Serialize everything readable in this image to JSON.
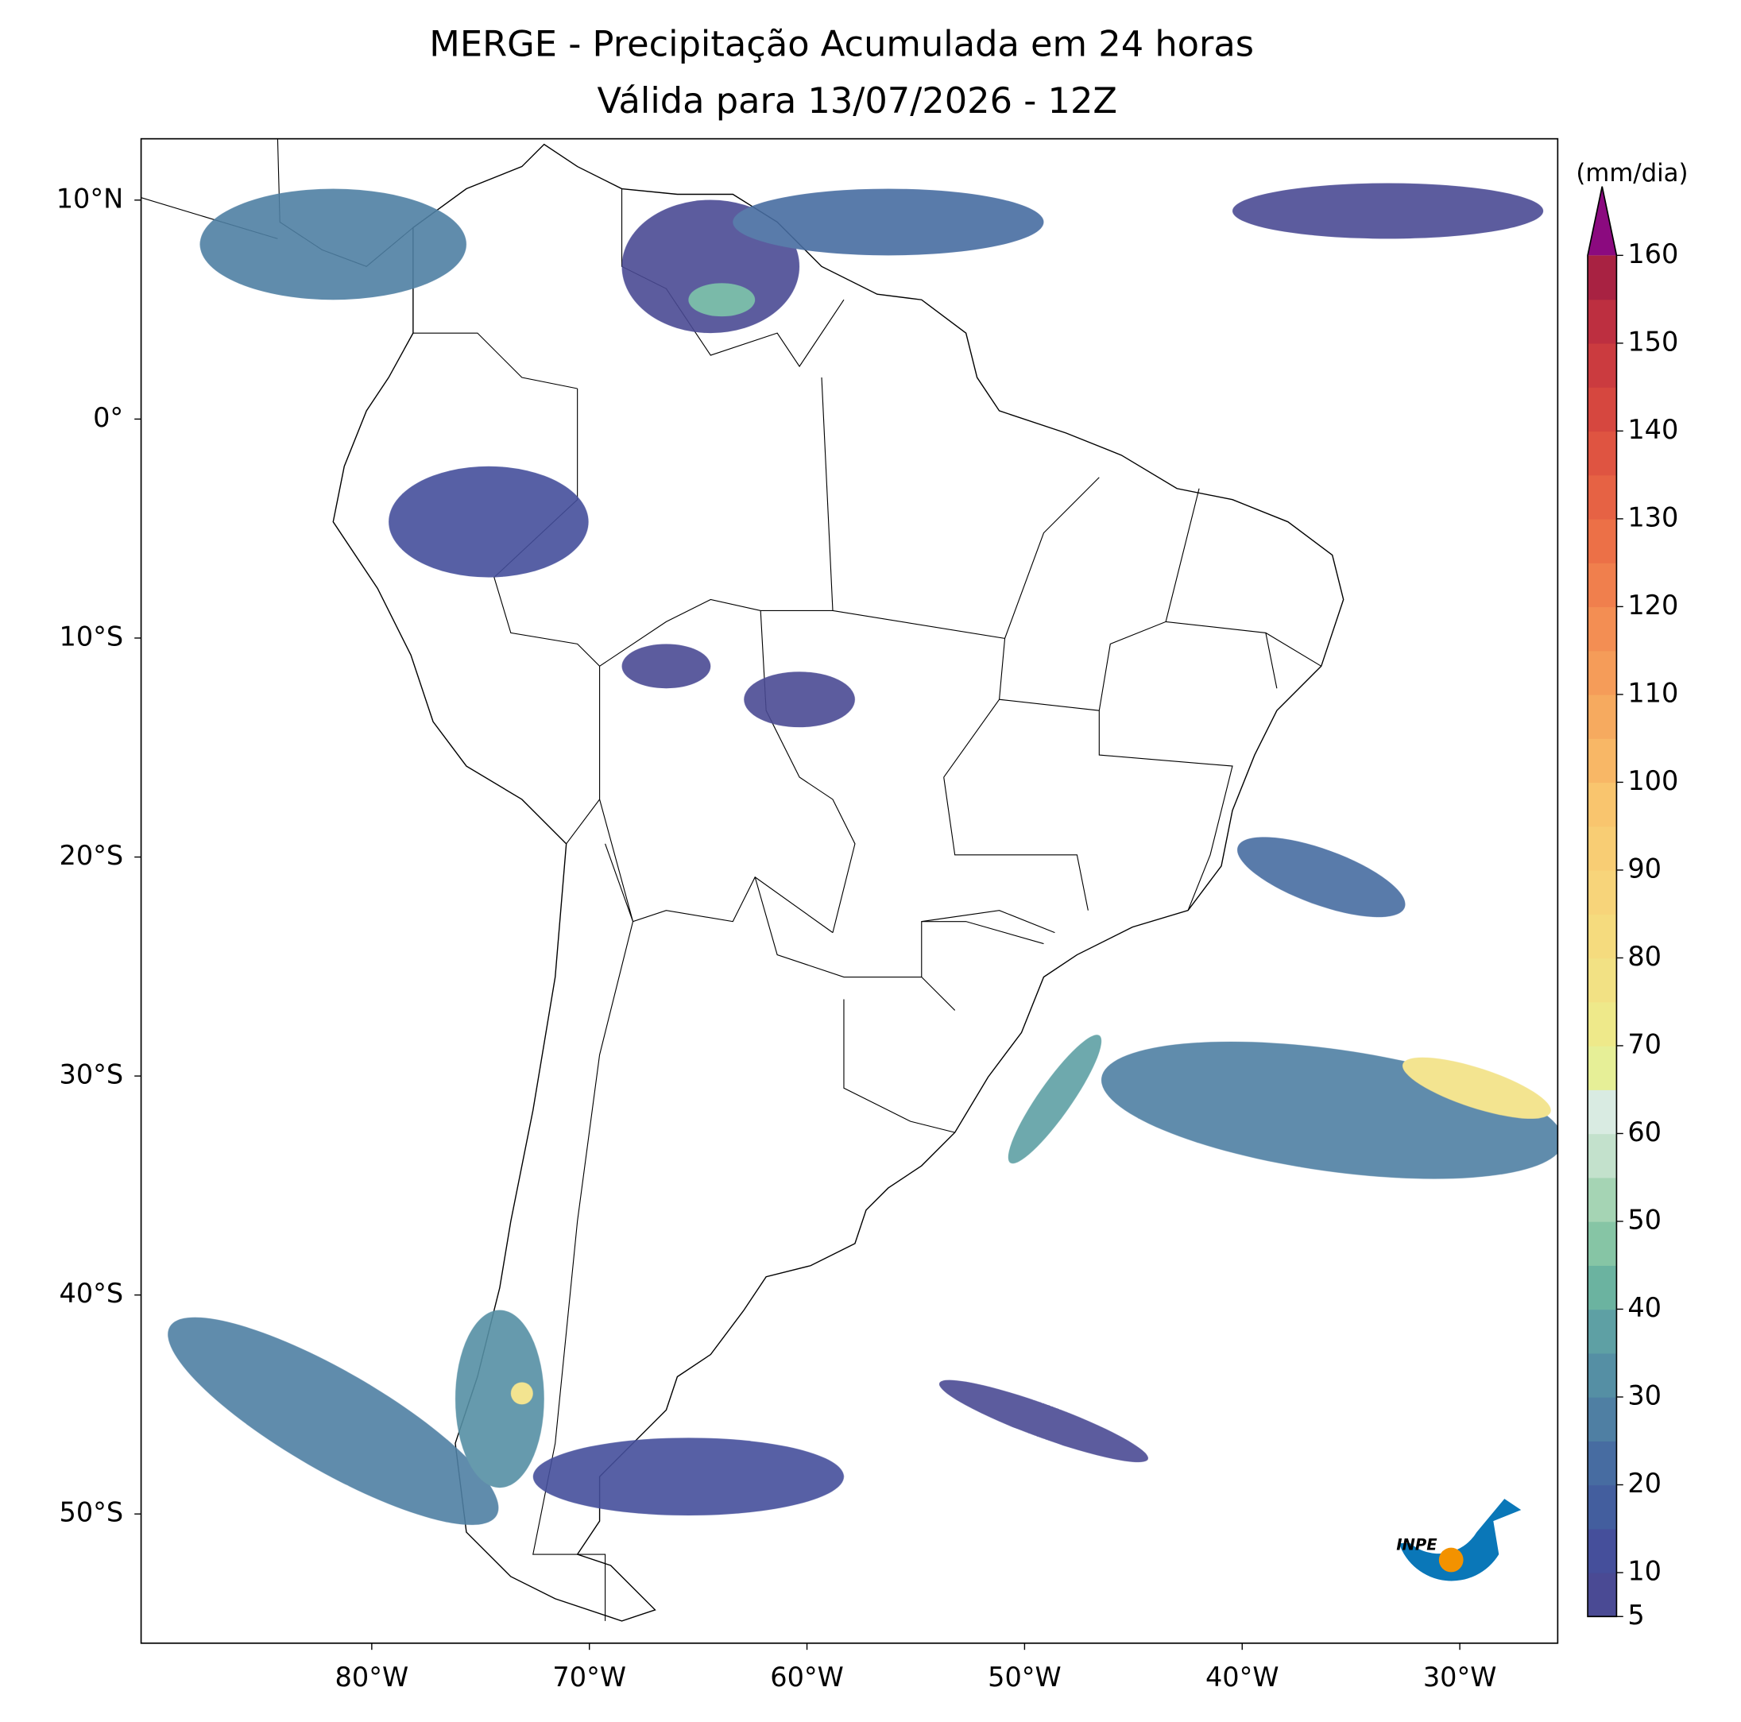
{
  "map": {
    "title": "MERGE - Precipitação Acumulada em 24 horas",
    "subtitle": "Válida para 13/07/2026 - 12Z",
    "lon_range": [
      -90.6,
      -25.5
    ],
    "lat_range": [
      -55.9,
      12.8
    ],
    "lon_ticks": [
      {
        "value": -80,
        "label": "80°W"
      },
      {
        "value": -70,
        "label": "70°W"
      },
      {
        "value": -60,
        "label": "60°W"
      },
      {
        "value": -50,
        "label": "50°W"
      },
      {
        "value": -40,
        "label": "40°W"
      },
      {
        "value": -30,
        "label": "30°W"
      }
    ],
    "lat_ticks": [
      {
        "value": 10,
        "label": "10°N"
      },
      {
        "value": 0,
        "label": "0°"
      },
      {
        "value": -10,
        "label": "10°S"
      },
      {
        "value": -20,
        "label": "20°S"
      },
      {
        "value": -30,
        "label": "30°S"
      },
      {
        "value": -40,
        "label": "40°S"
      },
      {
        "value": -50,
        "label": "50°S"
      }
    ],
    "colorbar": {
      "label": "(mm/dia)",
      "lim": [
        5,
        160
      ],
      "ticks": [
        5,
        10,
        20,
        30,
        40,
        50,
        60,
        70,
        80,
        90,
        100,
        110,
        120,
        130,
        140,
        150,
        160
      ],
      "colors": [
        "#4a4a94",
        "#454f9b",
        "#435e9e",
        "#476ca1",
        "#4f7fa3",
        "#558fa4",
        "#5ea0a4",
        "#6bb3a0",
        "#86c5a5",
        "#a5d4b4",
        "#c3e1cc",
        "#d9ebe2",
        "#e6ef97",
        "#eee98a",
        "#f2e184",
        "#f5db7e",
        "#f7d47a",
        "#f8cd74",
        "#f9c56e",
        "#f8b766",
        "#f6aa5f",
        "#f59c59",
        "#f38e53",
        "#f07f4d",
        "#ec7047",
        "#e66244",
        "#df5441",
        "#d6473f",
        "#cb3b3f",
        "#bd2f40",
        "#a82242"
      ],
      "extend_color": "#8b0a7f"
    },
    "logo": {
      "text": "INPE"
    }
  }
}
